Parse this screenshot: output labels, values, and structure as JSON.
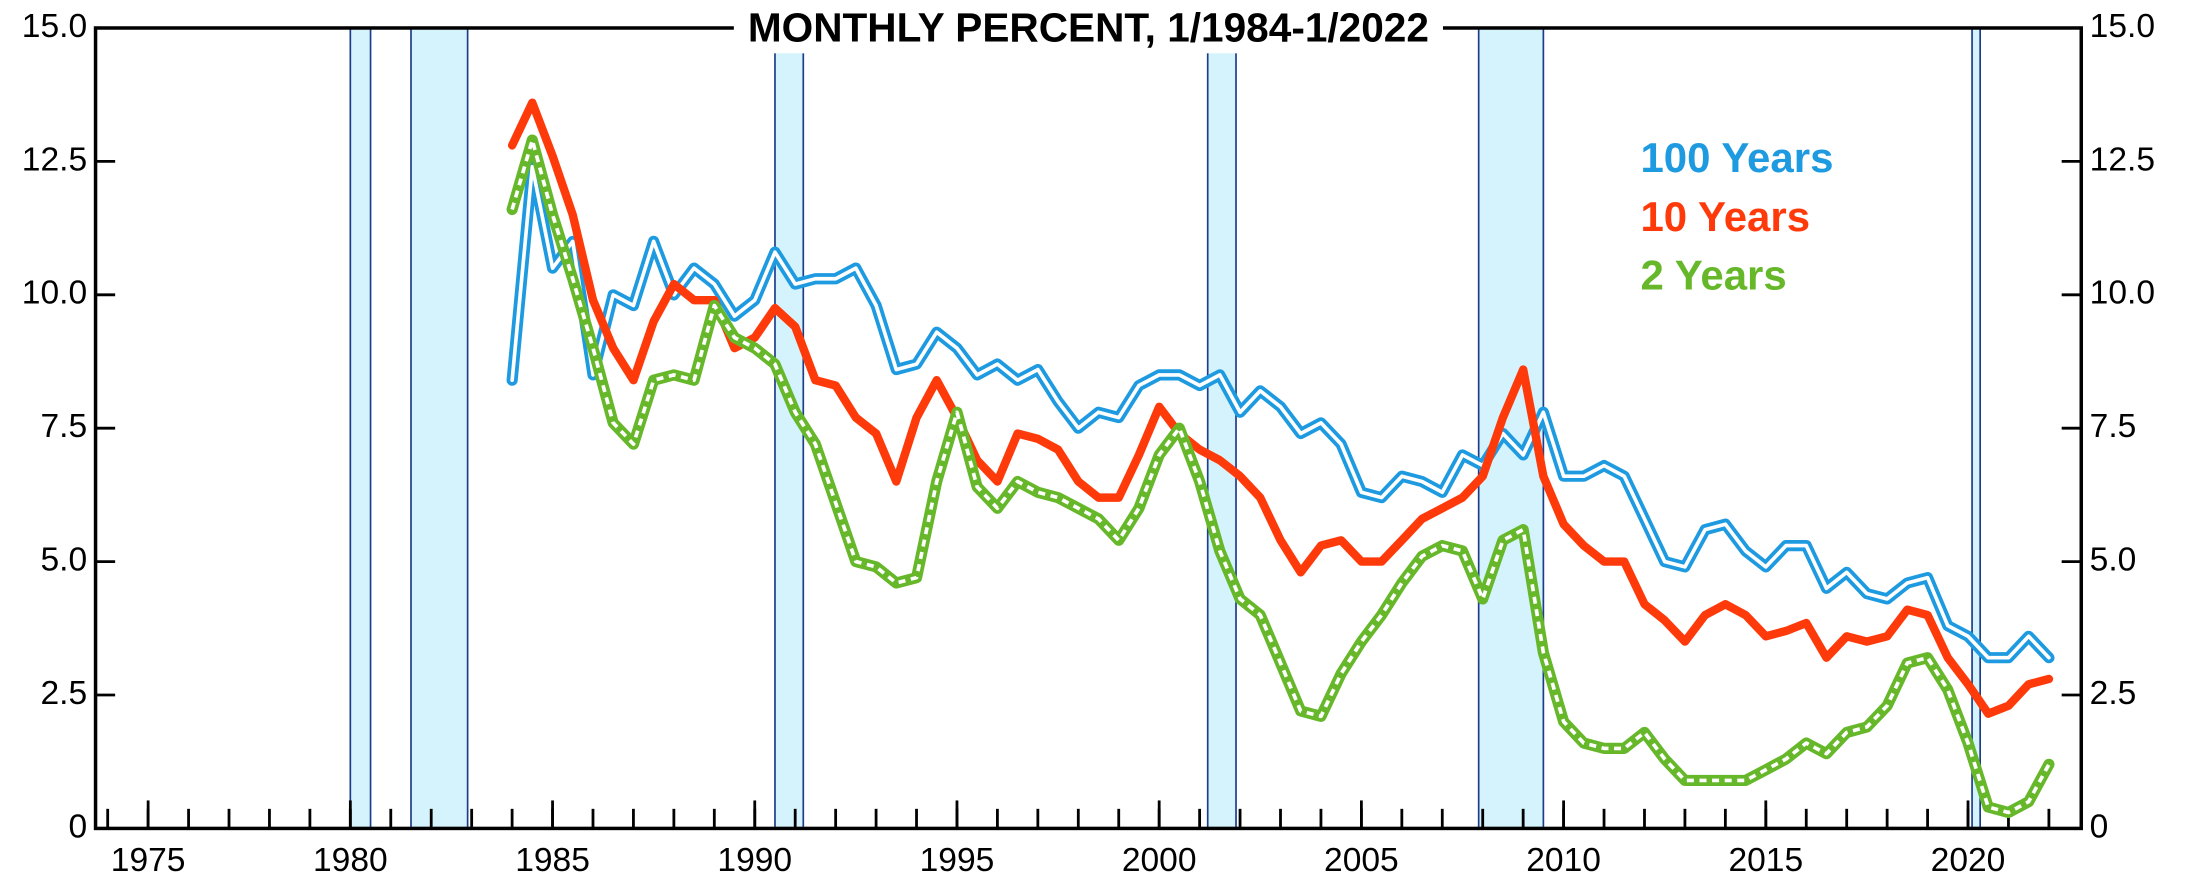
{
  "chart_data": {
    "type": "line",
    "title": "MONTHLY PERCENT, 1/1984-1/2022",
    "x": [
      1984,
      1984.5,
      1985,
      1985.5,
      1986,
      1986.5,
      1987,
      1987.5,
      1988,
      1988.5,
      1989,
      1989.5,
      1990,
      1990.5,
      1991,
      1991.5,
      1992,
      1992.5,
      1993,
      1993.5,
      1994,
      1994.5,
      1995,
      1995.5,
      1996,
      1996.5,
      1997,
      1997.5,
      1998,
      1998.5,
      1999,
      1999.5,
      2000,
      2000.5,
      2001,
      2001.5,
      2002,
      2002.5,
      2003,
      2003.5,
      2004,
      2004.5,
      2005,
      2005.5,
      2006,
      2006.5,
      2007,
      2007.5,
      2008,
      2008.5,
      2009,
      2009.5,
      2010,
      2010.5,
      2011,
      2011.5,
      2012,
      2012.5,
      2013,
      2013.5,
      2014,
      2014.5,
      2015,
      2015.5,
      2016,
      2016.5,
      2017,
      2017.5,
      2018,
      2018.5,
      2019,
      2019.5,
      2020,
      2020.5,
      2021,
      2021.5,
      2022
    ],
    "series": [
      {
        "name": "100 Years",
        "color": "#1e9ae0",
        "style": "double",
        "values": [
          8.4,
          12.4,
          10.5,
          11.0,
          8.5,
          10.0,
          9.8,
          11.0,
          10.0,
          10.5,
          10.2,
          9.6,
          9.9,
          10.8,
          10.2,
          10.3,
          10.3,
          10.5,
          9.8,
          8.6,
          8.7,
          9.3,
          9.0,
          8.5,
          8.7,
          8.4,
          8.6,
          8.0,
          7.5,
          7.8,
          7.7,
          8.3,
          8.5,
          8.5,
          8.3,
          8.5,
          7.8,
          8.2,
          7.9,
          7.4,
          7.6,
          7.2,
          6.3,
          6.2,
          6.6,
          6.5,
          6.3,
          7.0,
          6.8,
          7.4,
          7.0,
          7.8,
          6.6,
          6.6,
          6.8,
          6.6,
          5.8,
          5.0,
          4.9,
          5.6,
          5.7,
          5.2,
          4.9,
          5.3,
          5.3,
          4.5,
          4.8,
          4.4,
          4.3,
          4.6,
          4.7,
          3.8,
          3.6,
          3.2,
          3.2,
          3.6,
          3.2
        ]
      },
      {
        "name": "10 Years",
        "color": "#ff3a0a",
        "style": "solid",
        "values": [
          12.8,
          13.6,
          12.6,
          11.5,
          9.9,
          9.0,
          8.4,
          9.5,
          10.2,
          9.9,
          9.9,
          9.0,
          9.2,
          9.75,
          9.4,
          8.4,
          8.3,
          7.7,
          7.4,
          6.5,
          7.7,
          8.4,
          7.7,
          6.9,
          6.5,
          7.4,
          7.3,
          7.1,
          6.5,
          6.2,
          6.2,
          7.0,
          7.9,
          7.4,
          7.1,
          6.9,
          6.6,
          6.2,
          5.4,
          4.8,
          5.3,
          5.4,
          5.0,
          5.0,
          5.4,
          5.8,
          6.0,
          6.2,
          6.6,
          7.7,
          8.6,
          6.6,
          5.7,
          5.3,
          5.0,
          5.0,
          4.2,
          3.9,
          3.5,
          4.0,
          4.2,
          4.0,
          3.6,
          3.7,
          3.85,
          3.2,
          3.6,
          3.5,
          3.6,
          4.1,
          4.0,
          3.2,
          2.7,
          2.15,
          2.3,
          2.7,
          2.8
        ]
      },
      {
        "name": "2 Years",
        "color": "#66b82a",
        "style": "dashed",
        "values": [
          11.6,
          12.9,
          11.5,
          10.3,
          9.0,
          7.6,
          7.2,
          8.4,
          8.5,
          8.4,
          9.8,
          9.2,
          9.0,
          8.7,
          7.8,
          7.2,
          6.1,
          5.0,
          4.9,
          4.6,
          4.7,
          6.5,
          7.8,
          6.4,
          6.0,
          6.5,
          6.3,
          6.2,
          6.0,
          5.8,
          5.4,
          6.0,
          7.0,
          7.5,
          6.5,
          5.2,
          4.3,
          4.0,
          3.1,
          2.2,
          2.1,
          2.9,
          3.5,
          4.0,
          4.6,
          5.1,
          5.3,
          5.2,
          4.3,
          5.4,
          5.6,
          3.3,
          2.0,
          1.6,
          1.5,
          1.5,
          1.8,
          1.3,
          0.9,
          0.9,
          0.9,
          0.9,
          1.1,
          1.3,
          1.6,
          1.4,
          1.8,
          1.9,
          2.3,
          3.1,
          3.2,
          2.6,
          1.6,
          0.4,
          0.3,
          0.5,
          1.2
        ]
      }
    ],
    "recessions": [
      [
        1980.0,
        1980.5
      ],
      [
        1981.5,
        1982.9
      ],
      [
        1990.5,
        1991.2
      ],
      [
        2001.2,
        2001.9
      ],
      [
        2007.9,
        2009.5
      ],
      [
        2020.1,
        2020.3
      ]
    ],
    "recession_color": "#d5f3fc",
    "xlim": [
      1973.7,
      2022.8
    ],
    "xticks": [
      1975,
      1980,
      1985,
      1990,
      1995,
      2000,
      2005,
      2010,
      2015,
      2020
    ],
    "xminor_ticks": [
      1974,
      1975,
      1976,
      1977,
      1978,
      1979,
      1980,
      1981,
      1982,
      1983,
      1984,
      1985,
      1986,
      1987,
      1988,
      1989,
      1990,
      1991,
      1992,
      1993,
      1994,
      1995,
      1996,
      1997,
      1998,
      1999,
      2000,
      2001,
      2002,
      2003,
      2004,
      2005,
      2006,
      2007,
      2008,
      2009,
      2010,
      2011,
      2012,
      2013,
      2014,
      2015,
      2016,
      2017,
      2018,
      2019,
      2020,
      2021,
      2022
    ],
    "ylim": [
      0,
      15
    ],
    "yticks": [
      0,
      2.5,
      {
        "value": 5,
        "label": "5.0"
      },
      {
        "value": 7.5,
        "label": "7.5"
      },
      {
        "value": 10,
        "label": "10.0"
      },
      12.5,
      {
        "value": 15,
        "label": "15.0"
      }
    ],
    "legend": "top-right"
  }
}
